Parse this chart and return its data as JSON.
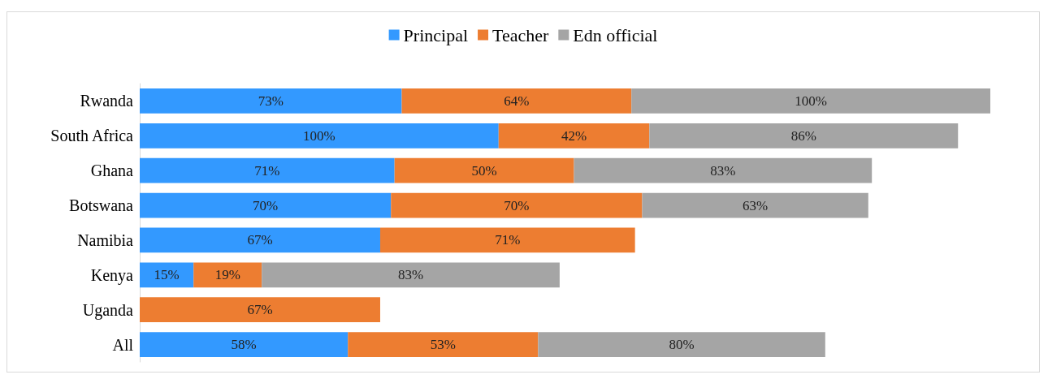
{
  "chart_data": {
    "type": "bar",
    "orientation": "horizontal",
    "stacked": true,
    "legend": "top",
    "grid": false,
    "tick_labels": "y",
    "categories": [
      "Rwanda",
      "South Africa",
      "Ghana",
      "Botswana",
      "Namibia",
      "Kenya",
      "Uganda",
      "All"
    ],
    "series": [
      {
        "name": "Principal",
        "color": "#3399ff",
        "values": [
          73,
          100,
          71,
          70,
          67,
          15,
          null,
          58
        ],
        "value_labels": [
          "73%",
          "100%",
          "71%",
          "70%",
          "67%",
          "15%",
          null,
          "58%"
        ]
      },
      {
        "name": "Teacher",
        "color": "#ed7d31",
        "values": [
          64,
          42,
          50,
          70,
          71,
          19,
          67,
          53
        ],
        "value_labels": [
          "64%",
          "42%",
          "50%",
          "70%",
          "71%",
          "19%",
          "67%",
          "53%"
        ]
      },
      {
        "name": "Edn official",
        "color": "#a5a5a5",
        "values": [
          100,
          86,
          83,
          63,
          null,
          83,
          null,
          80
        ],
        "value_labels": [
          "100%",
          "86%",
          "83%",
          "63%",
          null,
          "83%",
          null,
          "80%"
        ]
      }
    ]
  }
}
